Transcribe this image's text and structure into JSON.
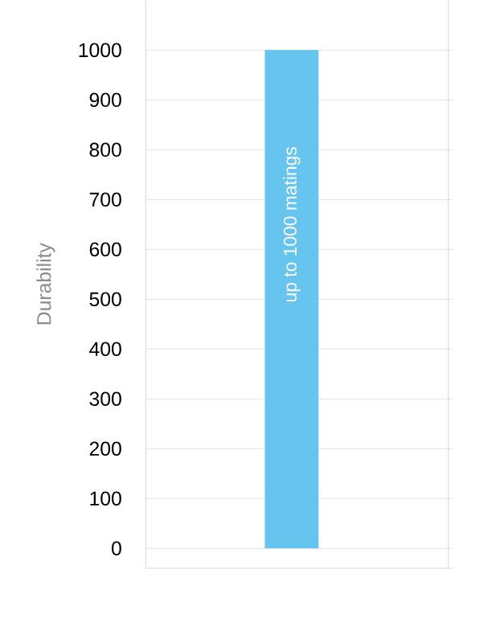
{
  "chart_data": {
    "type": "bar",
    "ylabel": "Durability",
    "categories": [
      null
    ],
    "values": [
      1000
    ],
    "color": "#66c4ef",
    "ylim": [
      -40,
      1100
    ],
    "yticks": [
      0,
      100,
      200,
      300,
      400,
      500,
      600,
      700,
      800,
      900,
      1000
    ],
    "grid": "y",
    "annotations": [
      "up to 1000 matings"
    ]
  }
}
